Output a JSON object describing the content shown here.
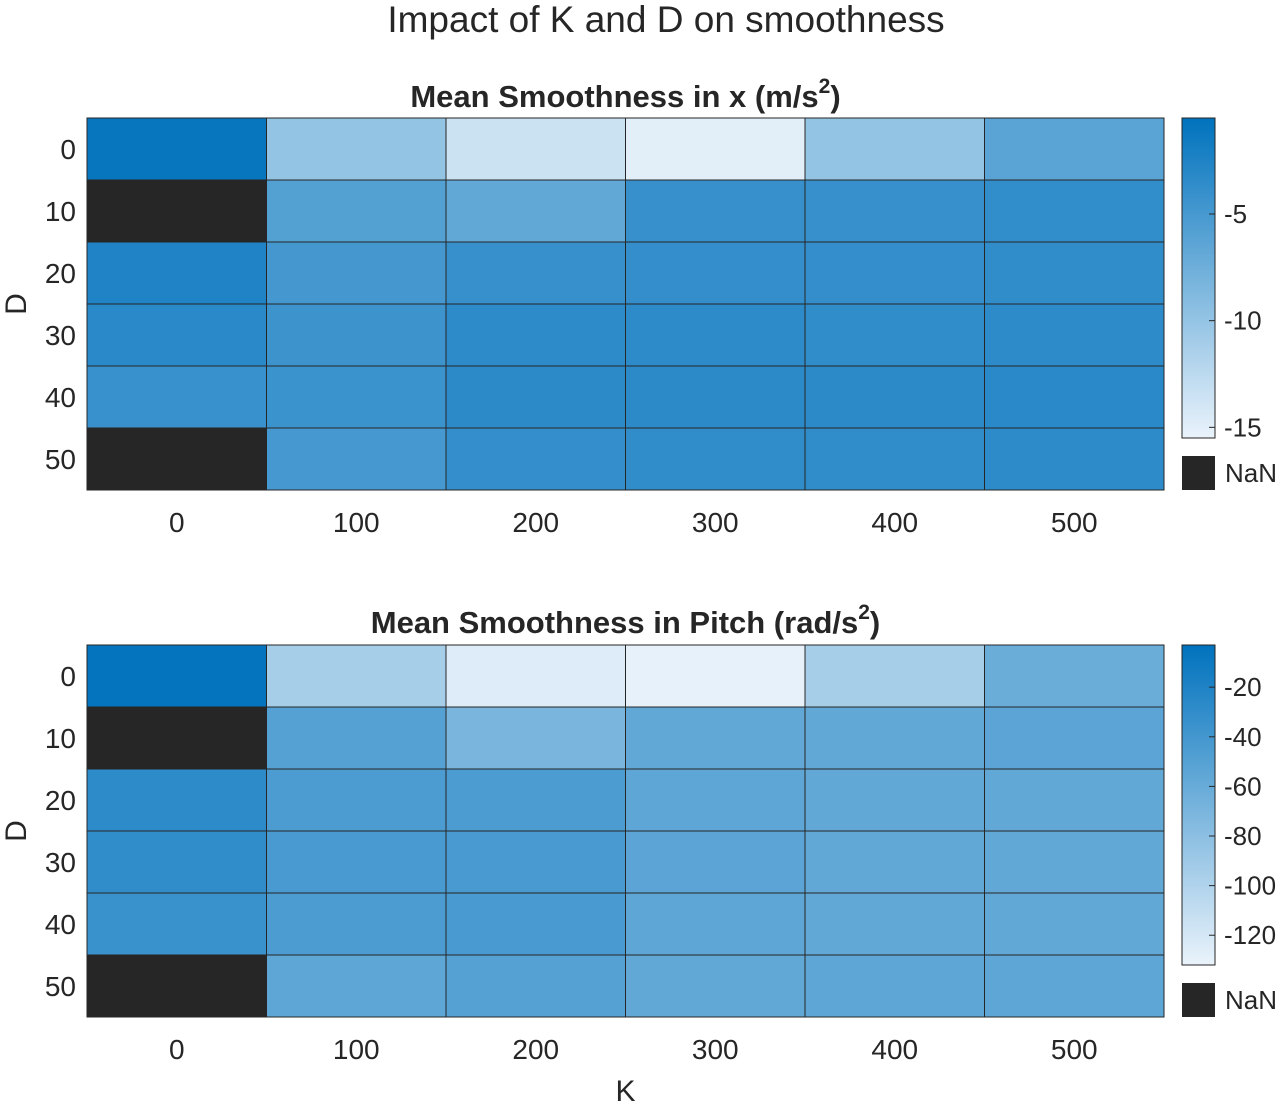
{
  "figure": {
    "title": "Impact of K and D on smoothness"
  },
  "chart_data": [
    {
      "type": "heatmap",
      "title": "Mean Smoothness in x (m/s",
      "title_sup": "2",
      "title_suffix": ")",
      "xlabel": "",
      "ylabel": "D",
      "x": [
        "0",
        "100",
        "200",
        "300",
        "400",
        "500"
      ],
      "y": [
        "0",
        "10",
        "20",
        "30",
        "40",
        "50"
      ],
      "values": [
        [
          -1.0,
          -10.0,
          -13.5,
          -15.0,
          -10.0,
          -6.3
        ],
        [
          null,
          -5.8,
          -6.8,
          -4.0,
          -4.0,
          -3.7
        ],
        [
          -2.5,
          -4.9,
          -4.0,
          -3.8,
          -3.8,
          -3.6
        ],
        [
          -3.2,
          -4.4,
          -3.4,
          -3.4,
          -3.6,
          -3.4
        ],
        [
          -4.1,
          -4.3,
          -3.3,
          -3.3,
          -3.3,
          -3.2
        ],
        [
          null,
          -5.0,
          -3.8,
          -3.6,
          -3.6,
          -3.4
        ]
      ],
      "colorbar": {
        "limits": [
          -15.5,
          -0.5
        ],
        "ticks": [
          -5,
          -10,
          -15
        ],
        "tick_labels": [
          "-5",
          "-10",
          "-15"
        ],
        "nan_label": "NaN"
      },
      "colormap": {
        "low": "#eaf3fb",
        "high": "#0072bd",
        "nan": "#262626"
      },
      "grid": true
    },
    {
      "type": "heatmap",
      "title": "Mean Smoothness in Pitch (rad/s",
      "title_sup": "2",
      "title_suffix": ")",
      "xlabel": "K",
      "ylabel": "D",
      "x": [
        "0",
        "100",
        "200",
        "300",
        "400",
        "500"
      ],
      "y": [
        "0",
        "10",
        "20",
        "30",
        "40",
        "50"
      ],
      "values": [
        [
          -5,
          -95,
          -125,
          -130,
          -95,
          -62
        ],
        [
          null,
          -50,
          -70,
          -57,
          -57,
          -53
        ],
        [
          -28,
          -45,
          -45,
          -55,
          -57,
          -57
        ],
        [
          -30,
          -43,
          -43,
          -53,
          -57,
          -57
        ],
        [
          -35,
          -45,
          -43,
          -55,
          -57,
          -57
        ],
        [
          null,
          -55,
          -50,
          -57,
          -55,
          -55
        ]
      ],
      "colorbar": {
        "limits": [
          -132,
          -3
        ],
        "ticks": [
          -20,
          -40,
          -60,
          -80,
          -100,
          -120
        ],
        "tick_labels": [
          "-20",
          "-40",
          "-60",
          "-80",
          "-100",
          "-120"
        ],
        "nan_label": "NaN"
      },
      "colormap": {
        "low": "#eaf3fb",
        "high": "#0072bd",
        "nan": "#262626"
      },
      "grid": true
    }
  ]
}
